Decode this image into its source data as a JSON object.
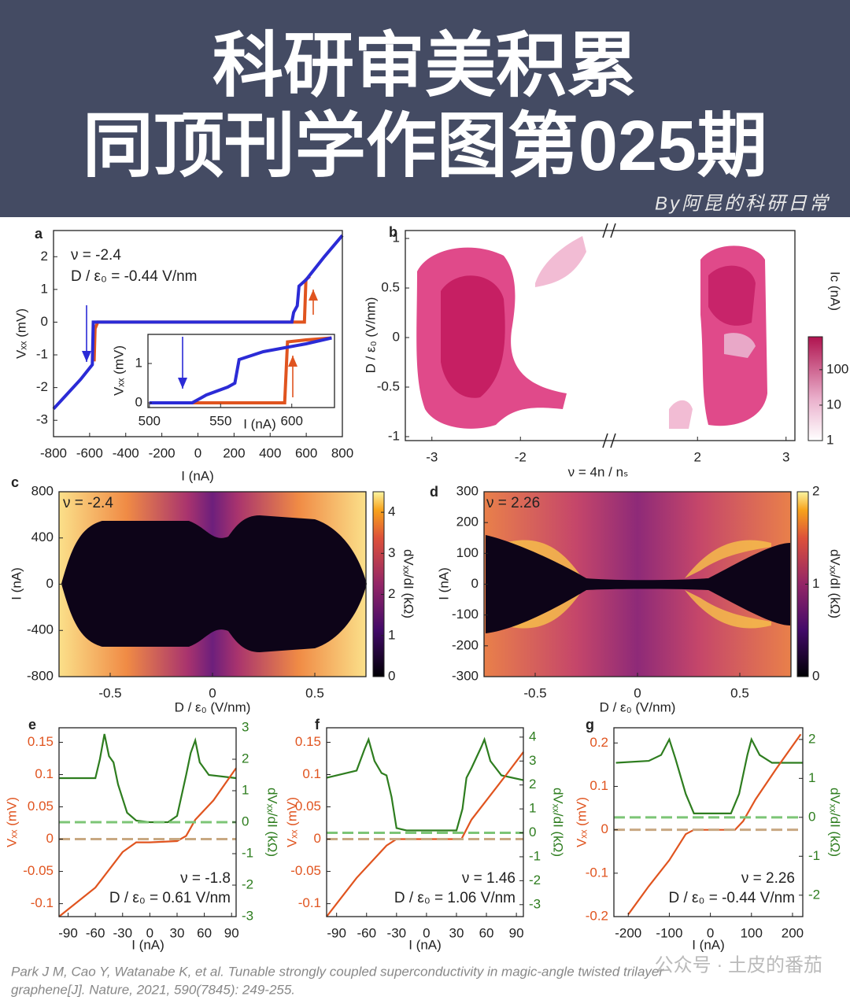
{
  "header": {
    "title_lines": [
      "科研审美积累",
      "同顶刊学作图第025期"
    ],
    "byline": "By阿昆的科研日常"
  },
  "citation": [
    "Park J M, Cao Y, Watanabe K, et al. Tunable strongly coupled superconductivity in magic-angle twisted trilayer",
    "graphene[J]. Nature, 2021, 590(7845): 249-255."
  ],
  "watermark": "公众号 · 土皮的番茄",
  "chart_data": [
    {
      "type": "line",
      "panel": "a",
      "annotations": [
        "ν = -2.4",
        "D / ε₀ = -0.44 V/nm"
      ],
      "xlabel": "I (nA)",
      "ylabel": "Vₓₓ (mV)",
      "xlim": [
        -800,
        800
      ],
      "ylim": [
        -3.5,
        2.8
      ],
      "xticks": [
        -800,
        -600,
        -400,
        -200,
        0,
        200,
        400,
        600,
        800
      ],
      "yticks": [
        -3,
        -2,
        -1,
        0,
        1,
        2
      ],
      "series": [
        {
          "color": "#e0541f",
          "x": [
            -575,
            -570,
            -555,
            590,
            598,
            620
          ],
          "values": [
            -1.2,
            -0.2,
            0,
            0,
            1.3,
            1.4
          ]
        },
        {
          "color": "#2b2bd6",
          "x": [
            -800,
            -650,
            -585,
            -580,
            520,
            530,
            550,
            560,
            600,
            700,
            800
          ],
          "values": [
            -2.65,
            -1.75,
            -1.3,
            0,
            0,
            0.3,
            0.5,
            1.1,
            1.3,
            2,
            2.65
          ]
        }
      ]
    },
    {
      "type": "line",
      "xlabel": "I (nA)",
      "ylabel": "Vₓₓ (mV)",
      "xlim": [
        499,
        630
      ],
      "ylim": [
        -0.12,
        1.74
      ],
      "xticks": [
        500,
        550,
        600
      ],
      "yticks": [
        0,
        1
      ],
      "series": [
        {
          "color": "#e0541f",
          "x": [
            500,
            530,
            560,
            595,
            597,
            610,
            628
          ],
          "values": [
            0,
            0,
            0,
            0,
            1.55,
            1.6,
            1.65
          ]
        },
        {
          "color": "#2b2bd6",
          "x": [
            500,
            530,
            540,
            555,
            560,
            563,
            580,
            610,
            628
          ],
          "values": [
            0,
            0,
            0.2,
            0.4,
            0.5,
            1.1,
            1.3,
            1.5,
            1.65
          ]
        }
      ]
    },
    {
      "type": "heatmap",
      "panel": "b",
      "xlabel": "ν = 4n / nₛ",
      "ylabel": "D / ε₀ (V/nm)",
      "colorbar_label": "Ic (nA)",
      "x_break": true,
      "xlim": [
        -3.3,
        3.1
      ],
      "ylim": [
        -1.04,
        1.08
      ],
      "xticks": [
        -3,
        -2,
        2,
        3
      ],
      "yticks": [
        -1,
        -0.5,
        0,
        0.5,
        1
      ],
      "clim": [
        1,
        850
      ],
      "colorbar_log": true,
      "cticks": [
        1,
        10,
        100
      ]
    },
    {
      "type": "heatmap",
      "panel": "c",
      "annotations": [
        "ν = -2.4"
      ],
      "xlabel": "D / ε₀ (V/nm)",
      "ylabel": "I (nA)",
      "colorbar_label": "dVₓₓ/dI (kΩ)",
      "xlim": [
        -0.75,
        0.75
      ],
      "ylim": [
        -800,
        800
      ],
      "xticks": [
        -0.5,
        0,
        0.5
      ],
      "yticks": [
        -800,
        -400,
        0,
        400,
        800
      ],
      "clim": [
        0,
        4.5
      ],
      "cticks": [
        0,
        1,
        2,
        3,
        4
      ]
    },
    {
      "type": "heatmap",
      "panel": "d",
      "annotations": [
        "ν = 2.26"
      ],
      "xlabel": "D / ε₀ (V/nm)",
      "ylabel": "I (nA)",
      "colorbar_label": "dVₓₓ/dI (kΩ)",
      "xlim": [
        -0.75,
        0.75
      ],
      "ylim": [
        -300,
        300
      ],
      "xticks": [
        -0.5,
        0,
        0.5
      ],
      "yticks": [
        -300,
        -200,
        -100,
        0,
        100,
        200,
        300
      ],
      "clim": [
        0,
        2
      ],
      "cticks": [
        0,
        1,
        2
      ]
    },
    {
      "type": "line",
      "panel": "e",
      "annotations": [
        "ν = -1.8",
        "D / ε₀ = 0.61 V/nm"
      ],
      "xlabel": "I (nA)",
      "ylabel": "Vₓₓ (mV)",
      "y2label": "dVₓₓ/dI (kΩ)",
      "ycolor": "#e0541f",
      "y2color": "#2e7d1f",
      "xlim": [
        -100,
        95
      ],
      "ylim": [
        -0.12,
        0.1725
      ],
      "y2lim": [
        -3,
        3
      ],
      "xticks": [
        -90,
        -60,
        -30,
        0,
        30,
        60,
        90
      ],
      "yticks": [
        -0.1,
        -0.05,
        0,
        0.05,
        0.1,
        0.15
      ],
      "y2ticks": [
        -3,
        -2,
        -1,
        0,
        1,
        2,
        3
      ],
      "series": [
        {
          "color": "#2e7d1f",
          "axis": "y2",
          "x": [
            -100,
            -60,
            -55,
            -50,
            -45,
            -40,
            -35,
            -25,
            -15,
            0,
            20,
            30,
            40,
            45,
            50,
            55,
            65,
            95
          ],
          "values": [
            1.4,
            1.4,
            2,
            2.8,
            2.1,
            1.9,
            1.2,
            0.3,
            0.05,
            0,
            0,
            0.2,
            1.5,
            2.2,
            2.6,
            1.9,
            1.5,
            1.4
          ]
        },
        {
          "color": "#e0541f",
          "x": [
            -100,
            -60,
            -30,
            -15,
            0,
            30,
            40,
            50,
            60,
            70,
            95
          ],
          "values": [
            -0.12,
            -0.075,
            -0.02,
            -0.005,
            -0.005,
            -0.003,
            0.005,
            0.03,
            0.045,
            0.06,
            0.11
          ]
        }
      ]
    },
    {
      "type": "line",
      "panel": "f",
      "annotations": [
        "ν = 1.46",
        "D / ε₀ = 1.06 V/nm"
      ],
      "xlabel": "I (nA)",
      "ylabel": "Vₓₓ (mV)",
      "y2label": "dVₓₓ/dI (kΩ)",
      "ycolor": "#e0541f",
      "y2color": "#2e7d1f",
      "xlim": [
        -100,
        97
      ],
      "ylim": [
        -0.12,
        0.1725
      ],
      "y2lim": [
        -3.5,
        4.39
      ],
      "xticks": [
        -90,
        -60,
        -30,
        0,
        30,
        60,
        90
      ],
      "yticks": [
        -0.1,
        -0.05,
        0,
        0.05,
        0.1,
        0.15
      ],
      "y2ticks": [
        -3,
        -2,
        -1,
        0,
        1,
        2,
        3,
        4
      ],
      "series": [
        {
          "color": "#2e7d1f",
          "axis": "y2",
          "x": [
            -100,
            -70,
            -62,
            -58,
            -52,
            -45,
            -40,
            -35,
            -30,
            -20,
            30,
            36,
            40,
            45,
            55,
            58,
            64,
            75,
            97
          ],
          "values": [
            2.3,
            2.6,
            3.5,
            3.9,
            3,
            2.5,
            2.4,
            1.5,
            0.2,
            0.1,
            0.1,
            1,
            2.3,
            2.7,
            3.6,
            3.9,
            3,
            2.4,
            2.2
          ]
        },
        {
          "color": "#e0541f",
          "x": [
            -100,
            -70,
            -40,
            -30,
            35,
            45,
            60,
            80,
            97
          ],
          "values": [
            -0.12,
            -0.06,
            -0.01,
            0,
            0,
            0.03,
            0.06,
            0.1,
            0.135
          ]
        }
      ]
    },
    {
      "type": "line",
      "panel": "g",
      "annotations": [
        "ν = 2.26",
        "D / ε₀ = -0.44 V/nm"
      ],
      "xlabel": "I (nA)",
      "ylabel": "Vₓₓ (mV)",
      "y2label": "dVₓₓ/dI (kΩ)",
      "ycolor": "#e0541f",
      "y2color": "#2e7d1f",
      "xlim": [
        -235,
        225
      ],
      "ylim": [
        -0.2,
        0.235
      ],
      "y2lim": [
        -2.55,
        2.3
      ],
      "xticks": [
        -200,
        -100,
        0,
        100,
        200
      ],
      "yticks": [
        -0.2,
        -0.1,
        0,
        0.1,
        0.2
      ],
      "y2ticks": [
        -2,
        -1,
        0,
        1,
        2
      ],
      "series": [
        {
          "color": "#2e7d1f",
          "axis": "y2",
          "x": [
            -230,
            -150,
            -120,
            -100,
            -85,
            -60,
            -40,
            50,
            70,
            90,
            100,
            120,
            150,
            225
          ],
          "values": [
            1.4,
            1.45,
            1.6,
            2,
            1.5,
            0.6,
            0.1,
            0.1,
            0.6,
            1.6,
            2,
            1.6,
            1.4,
            1.4
          ]
        },
        {
          "color": "#e0541f",
          "x": [
            -200,
            -150,
            -100,
            -60,
            -40,
            60,
            80,
            110,
            160,
            220
          ],
          "values": [
            -0.195,
            -0.13,
            -0.07,
            -0.01,
            0,
            0,
            0.02,
            0.07,
            0.14,
            0.22
          ]
        }
      ]
    }
  ]
}
